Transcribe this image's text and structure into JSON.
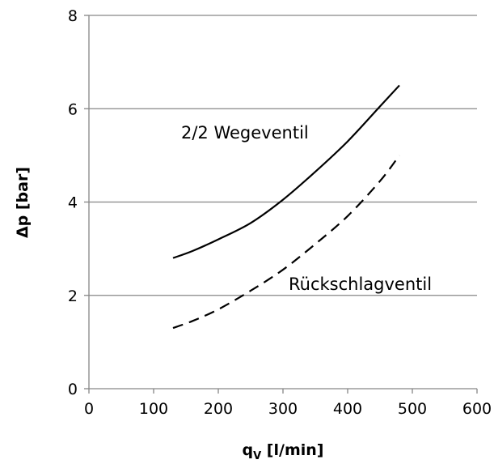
{
  "chart_data": {
    "type": "line",
    "xlabel": "q",
    "xlabel_sub": "V",
    "xlabel_unit": " [l/min]",
    "ylabel": "Δp [bar]",
    "xlim": [
      0,
      600
    ],
    "ylim": [
      0,
      8
    ],
    "x_ticks": [
      "0",
      "100",
      "200",
      "300",
      "400",
      "500",
      "600"
    ],
    "y_ticks": [
      "0",
      "2",
      "4",
      "6",
      "8"
    ],
    "grid": "horizontal",
    "colors": {
      "series": "#000000",
      "grid": "#868686"
    },
    "series": [
      {
        "name": "2/2 Wegeventil",
        "style": "solid",
        "x": [
          130,
          160,
          200,
          250,
          300,
          350,
          400,
          450,
          480
        ],
        "y": [
          2.8,
          2.95,
          3.2,
          3.55,
          4.05,
          4.65,
          5.3,
          6.05,
          6.5
        ]
      },
      {
        "name": "Rückschlagventil",
        "style": "dashed",
        "x": [
          130,
          160,
          200,
          250,
          300,
          350,
          400,
          450,
          480
        ],
        "y": [
          1.3,
          1.45,
          1.7,
          2.1,
          2.55,
          3.1,
          3.7,
          4.45,
          5.0
        ]
      }
    ]
  }
}
